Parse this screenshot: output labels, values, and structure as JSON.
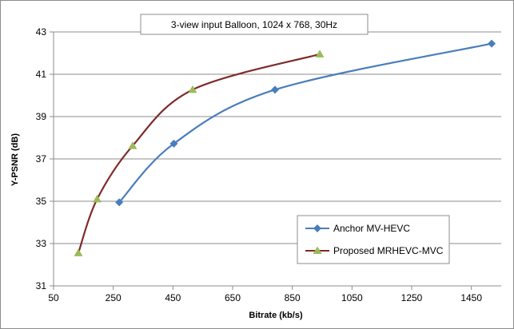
{
  "chart_data": {
    "type": "line",
    "title": "",
    "annotation": "3-view input Balloon, 1024 x 768,  30Hz",
    "xlabel": "Bitrate (kb/s)",
    "ylabel": "Y-PSNR (dB)",
    "xlim": [
      50,
      1550
    ],
    "ylim": [
      31,
      43
    ],
    "xticks": [
      50,
      250,
      450,
      650,
      850,
      1050,
      1250,
      1450
    ],
    "yticks": [
      31,
      33,
      35,
      37,
      39,
      41,
      43
    ],
    "grid": "horizontal",
    "legend_position": "bottom-right",
    "series": [
      {
        "name": "Anchor MV-HEVC",
        "color": "#4a7ebb",
        "marker": "diamond",
        "points": [
          {
            "x": 270,
            "y": 34.95
          },
          {
            "x": 453,
            "y": 37.72
          },
          {
            "x": 792,
            "y": 40.27
          },
          {
            "x": 1518,
            "y": 42.45
          }
        ]
      },
      {
        "name": "Proposed MRHEVC-MVC",
        "color": "#7f2a2a",
        "marker_color": "#9bbb59",
        "marker": "triangle",
        "points": [
          {
            "x": 133,
            "y": 32.55
          },
          {
            "x": 196,
            "y": 35.1
          },
          {
            "x": 315,
            "y": 37.62
          },
          {
            "x": 516,
            "y": 40.27
          },
          {
            "x": 942,
            "y": 41.95
          }
        ]
      }
    ]
  }
}
